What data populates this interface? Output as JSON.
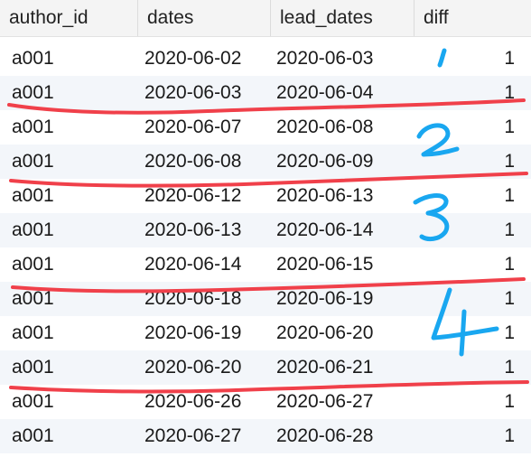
{
  "columns": {
    "author_id": "author_id",
    "dates": "dates",
    "lead_dates": "lead_dates",
    "diff": "diff"
  },
  "rows": [
    {
      "author_id": "a001",
      "dates": "2020-06-02",
      "lead_dates": "2020-06-03",
      "diff": "1"
    },
    {
      "author_id": "a001",
      "dates": "2020-06-03",
      "lead_dates": "2020-06-04",
      "diff": "1"
    },
    {
      "author_id": "a001",
      "dates": "2020-06-07",
      "lead_dates": "2020-06-08",
      "diff": "1"
    },
    {
      "author_id": "a001",
      "dates": "2020-06-08",
      "lead_dates": "2020-06-09",
      "diff": "1"
    },
    {
      "author_id": "a001",
      "dates": "2020-06-12",
      "lead_dates": "2020-06-13",
      "diff": "1"
    },
    {
      "author_id": "a001",
      "dates": "2020-06-13",
      "lead_dates": "2020-06-14",
      "diff": "1"
    },
    {
      "author_id": "a001",
      "dates": "2020-06-14",
      "lead_dates": "2020-06-15",
      "diff": "1"
    },
    {
      "author_id": "a001",
      "dates": "2020-06-18",
      "lead_dates": "2020-06-19",
      "diff": "1"
    },
    {
      "author_id": "a001",
      "dates": "2020-06-19",
      "lead_dates": "2020-06-20",
      "diff": "1"
    },
    {
      "author_id": "a001",
      "dates": "2020-06-20",
      "lead_dates": "2020-06-21",
      "diff": "1"
    },
    {
      "author_id": "a001",
      "dates": "2020-06-26",
      "lead_dates": "2020-06-27",
      "diff": "1"
    },
    {
      "author_id": "a001",
      "dates": "2020-06-27",
      "lead_dates": "2020-06-28",
      "diff": "1"
    }
  ],
  "annotations": {
    "group_labels": [
      "1",
      "2",
      "3",
      "4"
    ],
    "underline_color": "#f0404a",
    "label_color": "#19a7f0"
  }
}
